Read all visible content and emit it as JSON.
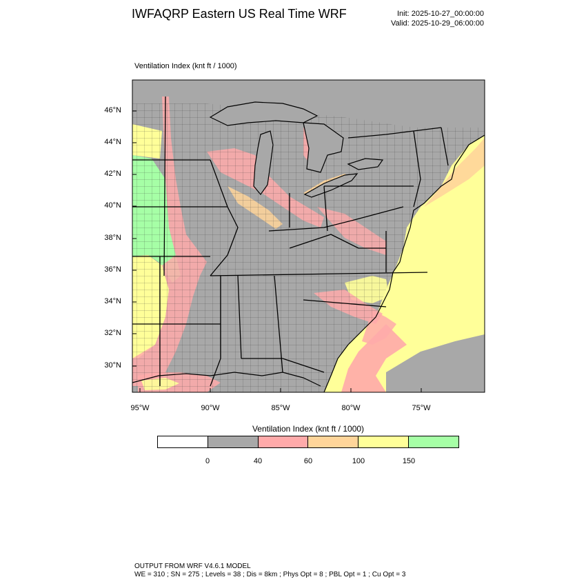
{
  "header": {
    "title": "IWFAQRP Eastern US Real Time WRF",
    "init": "Init: 2025-10-27_00:00:00",
    "valid": "Valid: 2025-10-29_06:00:00"
  },
  "map": {
    "field_label": "Ventilation Index   (knt ft / 1000)",
    "lat_labels": [
      "46°N",
      "44°N",
      "42°N",
      "40°N",
      "38°N",
      "36°N",
      "34°N",
      "32°N",
      "30°N"
    ],
    "lon_labels": [
      "95°W",
      "90°W",
      "85°W",
      "80°W",
      "75°W"
    ],
    "colors": {
      "land_gray": "#a8a8a8",
      "pink": "#ffaaaa",
      "orange": "#ffd59a",
      "yellow": "#ffff99",
      "green": "#a6ffa6"
    }
  },
  "colorbar": {
    "title": "Ventilation Index  (knt ft / 1000)",
    "colors": [
      "#ffffff",
      "#a8a8a8",
      "#ffaaaa",
      "#ffd59a",
      "#ffff99",
      "#a6ffa6"
    ],
    "ticks": [
      "0",
      "40",
      "60",
      "100",
      "150"
    ]
  },
  "footer": {
    "line1": "OUTPUT FROM WRF V4.6.1 MODEL",
    "line2": "WE = 310 ; SN = 275 ; Levels = 38 ; Dis = 8km ; Phys Opt = 8 ; PBL Opt = 1 ; Cu Opt = 3"
  }
}
